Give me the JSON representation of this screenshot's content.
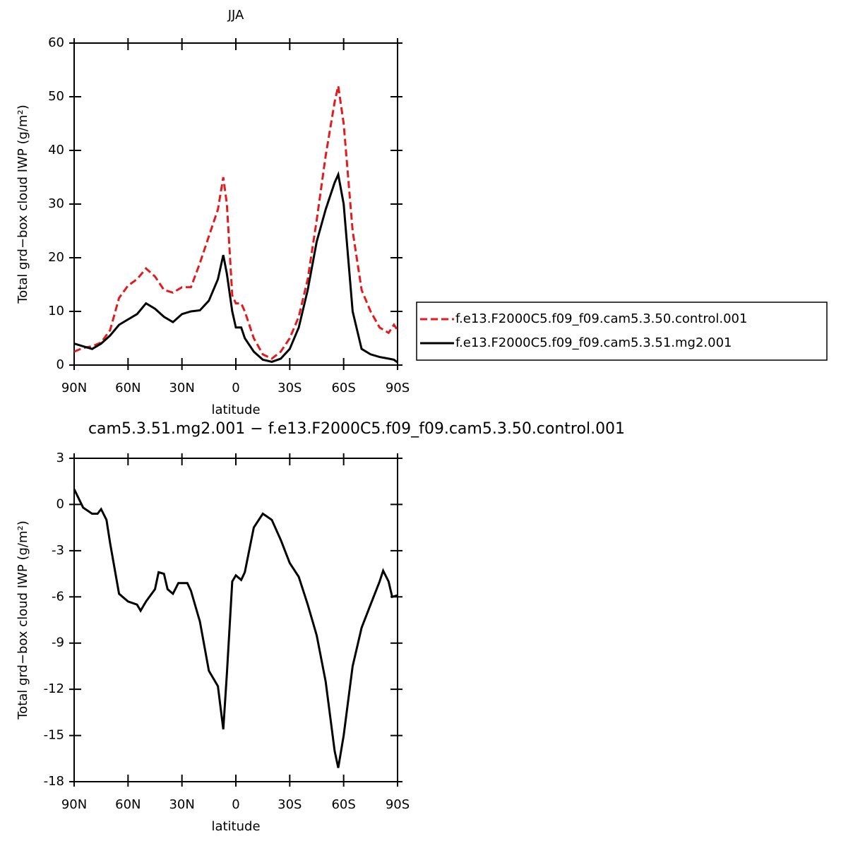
{
  "chart_data": [
    {
      "type": "line",
      "title": "JJA",
      "x_label": "latitude",
      "y_label": "Total grd−box cloud IWP (g/m²)",
      "x": [
        90,
        85,
        80,
        75,
        70,
        65,
        60,
        55,
        50,
        45,
        40,
        35,
        30,
        25,
        20,
        15,
        10,
        7,
        5,
        2,
        0,
        -3,
        -5,
        -10,
        -15,
        -20,
        -25,
        -30,
        -35,
        -40,
        -45,
        -50,
        -55,
        -57,
        -60,
        -65,
        -70,
        -75,
        -80,
        -85,
        -88,
        -90
      ],
      "series": [
        {
          "name": "f.e13.F2000C5.f09_f09.cam5.3.50.control.001",
          "color": "#e41a1c",
          "linestyle": "dashed",
          "values": [
            2.5,
            3.2,
            3.5,
            4.2,
            6.5,
            12.5,
            14.8,
            16,
            18,
            16.5,
            14,
            13.5,
            14.5,
            14.5,
            19,
            24,
            29,
            35,
            30,
            13,
            11.5,
            11.5,
            10,
            5,
            2,
            1.2,
            2.5,
            5,
            9,
            16,
            27,
            39,
            49,
            52,
            45,
            25,
            14,
            10,
            7,
            6,
            7.5,
            6.5
          ]
        },
        {
          "name": "f.e13.F2000C5.f09_f09.cam5.3.51.mg2.001",
          "color": "#000000",
          "linestyle": "solid",
          "values": [
            4,
            3.5,
            3,
            4,
            5.5,
            7.5,
            8.5,
            9.5,
            11.5,
            10.5,
            9,
            8,
            9.5,
            10,
            10.2,
            12,
            16,
            20.5,
            17,
            10,
            7,
            7,
            5,
            2.5,
            1,
            0.6,
            1.2,
            3,
            7,
            14,
            23,
            29,
            34,
            35.5,
            30,
            10,
            3,
            2,
            1.5,
            1.2,
            1,
            0.5
          ]
        }
      ],
      "xlim": [
        90,
        -90
      ],
      "xticks": [
        {
          "value": 90,
          "label": "90N"
        },
        {
          "value": 60,
          "label": "60N"
        },
        {
          "value": 30,
          "label": "30N"
        },
        0,
        {
          "value": -30,
          "label": "30S"
        },
        {
          "value": -60,
          "label": "60S"
        },
        {
          "value": -90,
          "label": "90S"
        }
      ],
      "ylim": [
        0,
        60
      ],
      "yticks": [
        0,
        10,
        20,
        30,
        40,
        50,
        60
      ],
      "legend": "right"
    },
    {
      "type": "line",
      "title": "cam5.3.51.mg2.001 − f.e13.F2000C5.f09_f09.cam5.3.50.control.001",
      "x_label": "latitude",
      "y_label": "Total grd−box cloud IWP (g/m²)",
      "x": [
        90,
        85,
        80,
        77,
        75,
        72,
        70,
        65,
        60,
        55,
        53,
        50,
        45,
        43,
        40,
        38,
        35,
        32,
        30,
        27,
        25,
        20,
        15,
        10,
        7,
        5,
        2,
        0,
        -3,
        -5,
        -10,
        -15,
        -20,
        -25,
        -30,
        -35,
        -40,
        -45,
        -50,
        -55,
        -57,
        -60,
        -65,
        -70,
        -75,
        -80,
        -82,
        -85,
        -87,
        -90
      ],
      "values": [
        1,
        -0.2,
        -0.6,
        -0.6,
        -0.3,
        -1,
        -2.5,
        -5.8,
        -6.3,
        -6.5,
        -6.9,
        -6.3,
        -5.5,
        -4.4,
        -4.5,
        -5.5,
        -5.8,
        -5.1,
        -5.1,
        -5.1,
        -5.6,
        -7.6,
        -10.8,
        -11.8,
        -14.6,
        -11,
        -5,
        -4.6,
        -4.9,
        -4.4,
        -1.5,
        -0.6,
        -1,
        -2.3,
        -3.8,
        -4.7,
        -6.5,
        -8.5,
        -11.5,
        -16,
        -17.1,
        -15,
        -10.5,
        -8,
        -6.5,
        -5,
        -4.3,
        -5,
        -6,
        -5.9
      ],
      "color": "#000000",
      "xlim": [
        90,
        -90
      ],
      "xticks": [
        {
          "value": 90,
          "label": "90N"
        },
        {
          "value": 60,
          "label": "60N"
        },
        {
          "value": 30,
          "label": "30N"
        },
        0,
        {
          "value": -30,
          "label": "30S"
        },
        {
          "value": -60,
          "label": "60S"
        },
        {
          "value": -90,
          "label": "90S"
        }
      ],
      "ylim": [
        -18,
        3
      ],
      "yticks": [
        -18,
        -15,
        -12,
        -9,
        -6,
        -3,
        0,
        3
      ]
    }
  ]
}
